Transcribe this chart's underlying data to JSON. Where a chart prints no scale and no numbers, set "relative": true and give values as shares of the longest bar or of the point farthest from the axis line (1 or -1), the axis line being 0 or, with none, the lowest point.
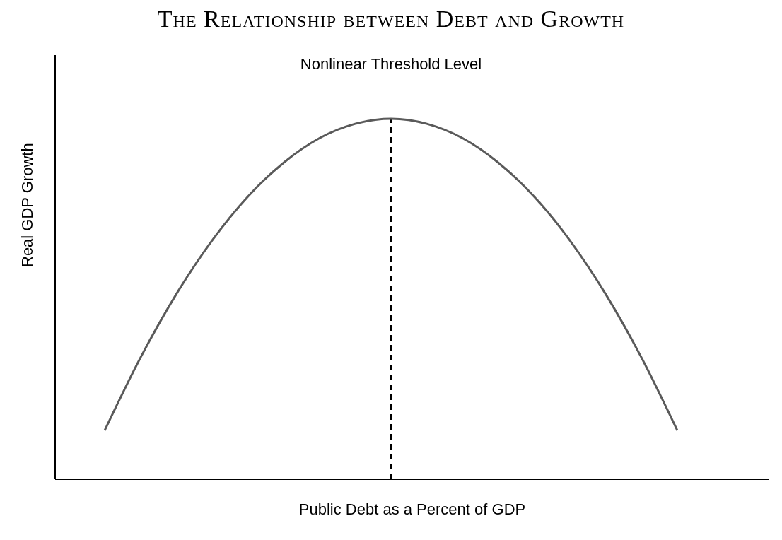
{
  "chart_data": {
    "type": "line",
    "title": "The Relationship between Debt and Growth",
    "xlabel": "Public Debt as a Percent of GDP",
    "ylabel": "Real GDP Growth",
    "relative": true,
    "categories": [
      null,
      null,
      null,
      null,
      null,
      null,
      null,
      null,
      null,
      null,
      null,
      null,
      null,
      null,
      null,
      null,
      null
    ],
    "series": [
      {
        "color": "#5a5a5a",
        "values": [
          0.135,
          0.337,
          0.513,
          0.662,
          0.784,
          0.878,
          0.946,
          0.986,
          1.0,
          0.986,
          0.946,
          0.878,
          0.784,
          0.662,
          0.513,
          0.337,
          0.135
        ]
      }
    ],
    "annotations": [
      "Nonlinear Threshold Level"
    ],
    "grid": false,
    "legend": false,
    "marker": "none",
    "line_style": "solid"
  }
}
